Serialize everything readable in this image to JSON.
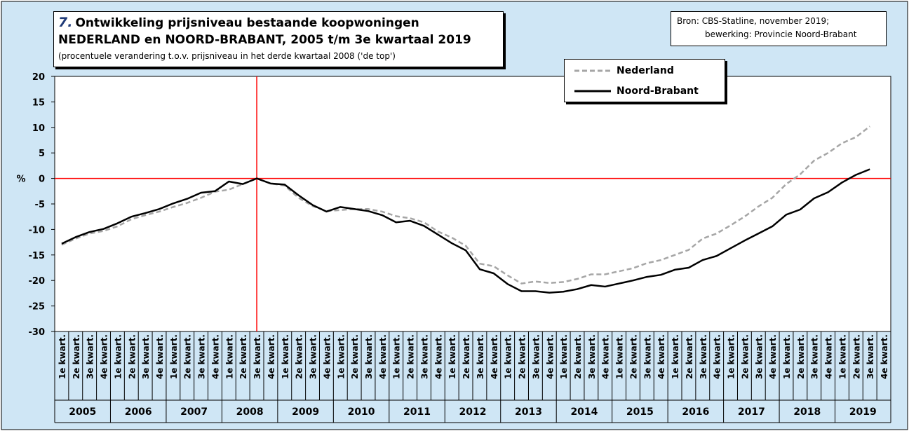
{
  "colors": {
    "background": "#cfe6f5",
    "plot_area": "#ffffff",
    "reference": "#ff0000",
    "nederland": "#a6a6a6",
    "noord_brabant": "#000000",
    "title_number": "#1f3a78"
  },
  "title": {
    "number": "7.",
    "line1": "Ontwikkeling prijsniveau bestaande koopwoningen",
    "line2": "NEDERLAND en NOORD-BRABANT, 2005 t/m 3e kwartaal 2019",
    "subtitle": "(procentuele verandering t.o.v. prijsniveau in het derde kwartaal 2008 ('de top')"
  },
  "source": {
    "line1": "Bron: CBS-Statline, november 2019;",
    "line2": "bewerking: Provincie Noord-Brabant"
  },
  "chart_data": {
    "type": "line",
    "ylabel": "%",
    "ylim": [
      -30,
      20
    ],
    "yticks": [
      20,
      15,
      10,
      5,
      0,
      -5,
      -10,
      -15,
      -20,
      -25,
      -30
    ],
    "quarter_labels": [
      "1e kwart.",
      "2e kwart.",
      "3e kwart.",
      "4e kwart."
    ],
    "years": [
      "2005",
      "2006",
      "2007",
      "2008",
      "2009",
      "2010",
      "2011",
      "2012",
      "2013",
      "2014",
      "2015",
      "2016",
      "2017",
      "2018",
      "2019"
    ],
    "reference_line": {
      "y": 0,
      "x_quarter": "2008 3e kwart."
    },
    "legend": {
      "position": "top-right"
    },
    "series": [
      {
        "name": "Nederland",
        "style": "dashed",
        "values": [
          -13.0,
          -11.8,
          -10.8,
          -10.3,
          -9.4,
          -8.0,
          -7.2,
          -6.5,
          -5.6,
          -4.8,
          -3.8,
          -2.6,
          -2.2,
          -1.1,
          0.0,
          -1.0,
          -1.4,
          -3.8,
          -5.4,
          -6.4,
          -6.2,
          -6.0,
          -6.0,
          -6.5,
          -7.4,
          -7.8,
          -8.6,
          -10.4,
          -11.6,
          -13.2,
          -16.7,
          -17.2,
          -19.0,
          -20.6,
          -20.2,
          -20.5,
          -20.3,
          -19.7,
          -18.8,
          -18.8,
          -18.2,
          -17.6,
          -16.6,
          -16.0,
          -15.0,
          -14.0,
          -11.8,
          -10.8,
          -9.2,
          -7.5,
          -5.5,
          -3.8,
          -1.1,
          0.8,
          3.5,
          5.0,
          6.9,
          8.1,
          10.2,
          null
        ]
      },
      {
        "name": "Noord-Brabant",
        "style": "solid",
        "values": [
          -12.8,
          -11.5,
          -10.5,
          -9.9,
          -8.8,
          -7.5,
          -6.8,
          -6.0,
          -4.9,
          -4.0,
          -2.8,
          -2.5,
          -0.6,
          -1.1,
          0.0,
          -1.0,
          -1.2,
          -3.3,
          -5.2,
          -6.5,
          -5.6,
          -6.0,
          -6.4,
          -7.2,
          -8.6,
          -8.3,
          -9.3,
          -11.0,
          -12.7,
          -14.1,
          -17.8,
          -18.6,
          -20.7,
          -22.1,
          -22.1,
          -22.4,
          -22.2,
          -21.7,
          -20.9,
          -21.2,
          -20.6,
          -20.0,
          -19.3,
          -18.9,
          -17.9,
          -17.5,
          -16.0,
          -15.2,
          -13.7,
          -12.2,
          -10.8,
          -9.4,
          -7.1,
          -6.1,
          -3.9,
          -2.7,
          -0.8,
          0.7,
          1.8,
          null
        ]
      }
    ]
  }
}
